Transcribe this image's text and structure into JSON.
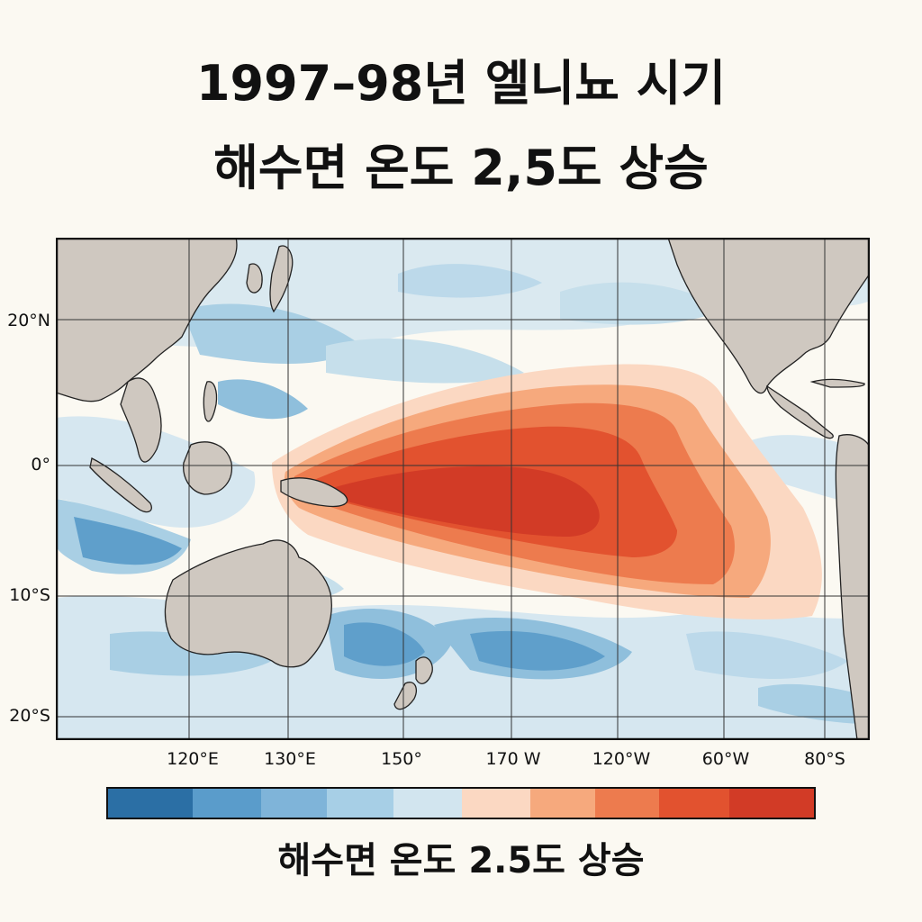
{
  "title": {
    "line1": "1997–98년 엘니뇨 시기",
    "line2": "해수면 온도 2,5도 상승"
  },
  "map": {
    "lat_labels": [
      "20°N",
      "0°",
      "10°S",
      "20°S"
    ],
    "lon_labels": [
      "120°E",
      "130°E",
      "150°",
      "170 W",
      "120°W",
      "60°W",
      "80°S"
    ],
    "land_color": "#cfc8c0",
    "ocean_color": "#fbf9f2"
  },
  "legend": {
    "colors": [
      "#2b6fa5",
      "#5a9ccb",
      "#7fb4d9",
      "#a7cfe6",
      "#d2e5ef",
      "#fbd8c2",
      "#f6a97d",
      "#ed7b4e",
      "#e2522f",
      "#d23b26"
    ],
    "caption": "해수면 온도 2.5도 상승"
  }
}
